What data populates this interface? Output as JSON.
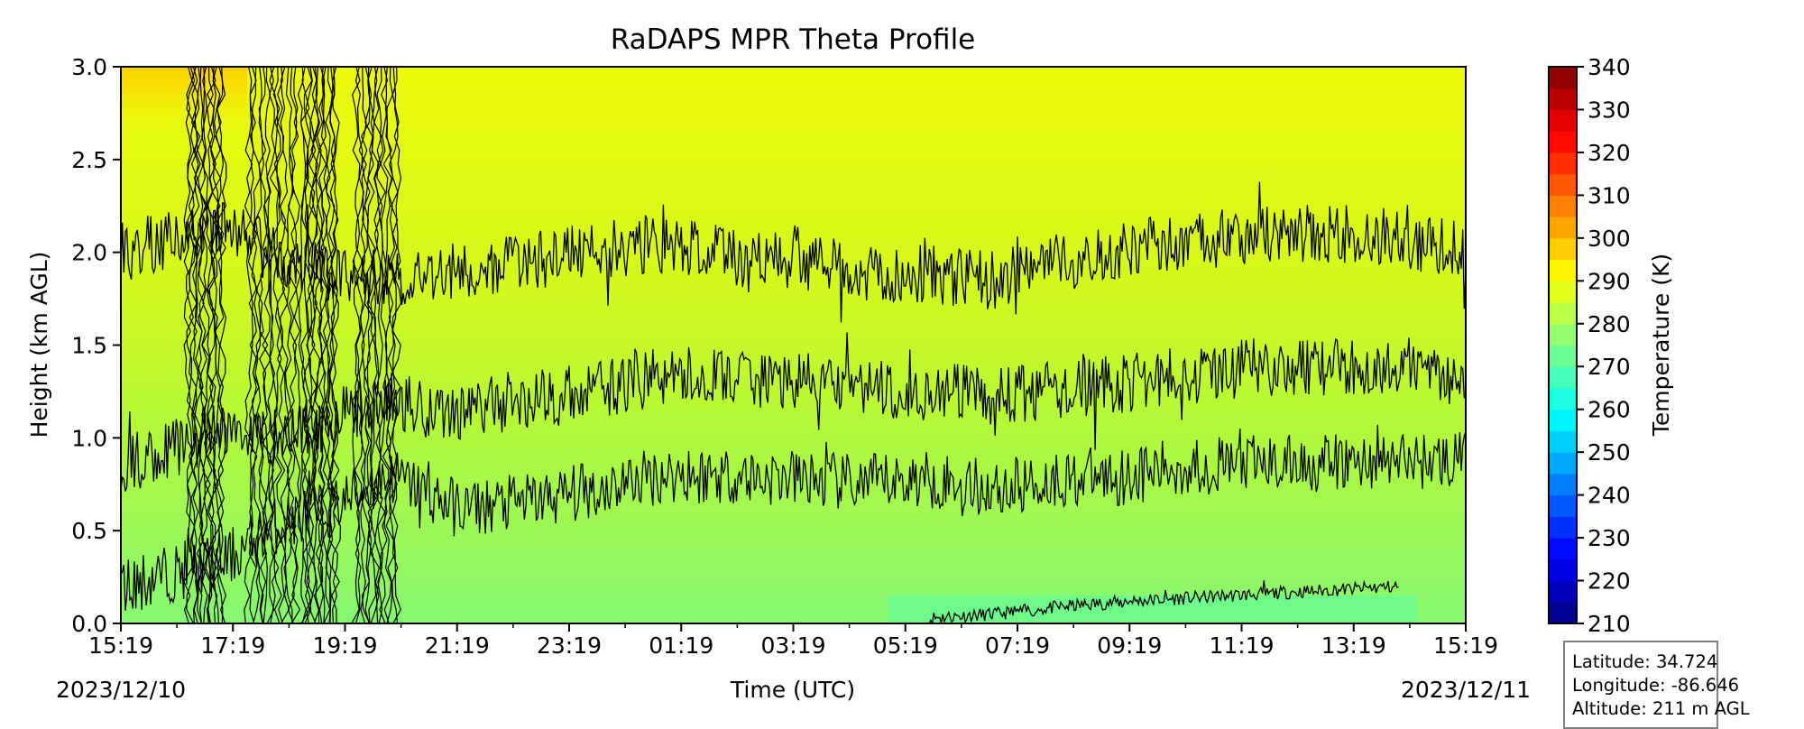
{
  "chart_data": {
    "type": "heatmap",
    "title": "RaDAPS MPR Theta Profile",
    "xlabel": "Time (UTC)",
    "ylabel": "Height (km AGL)",
    "x_tick_labels": [
      "15:19",
      "17:19",
      "19:19",
      "21:19",
      "23:19",
      "01:19",
      "03:19",
      "05:19",
      "07:19",
      "09:19",
      "11:19",
      "13:19",
      "15:19"
    ],
    "x_start_date": "2023/12/10",
    "x_end_date": "2023/12/11",
    "y_tick_labels": [
      "0.0",
      "0.5",
      "1.0",
      "1.5",
      "2.0",
      "2.5",
      "3.0"
    ],
    "ylim": [
      0,
      3.0
    ],
    "colorbar": {
      "label": "Temperature (K)",
      "range": [
        210,
        340
      ],
      "step": 5,
      "tick_labels": [
        "210",
        "220",
        "230",
        "240",
        "250",
        "260",
        "270",
        "280",
        "290",
        "300",
        "310",
        "320",
        "330",
        "340"
      ],
      "colormap": "jet"
    },
    "contour_levels_K": [
      270,
      280,
      290,
      300
    ],
    "contour_height_km": {
      "time_fraction": [
        0.0,
        0.08,
        0.12,
        0.15,
        0.2,
        0.25,
        0.3,
        0.35,
        0.4,
        0.45,
        0.5,
        0.55,
        0.6,
        0.65,
        0.7,
        0.75,
        0.8,
        0.85,
        0.9,
        0.95,
        1.0
      ],
      "level_270": [
        null,
        null,
        null,
        null,
        null,
        null,
        null,
        null,
        null,
        null,
        null,
        null,
        0.03,
        0.05,
        0.09,
        0.12,
        0.14,
        0.16,
        0.18,
        0.2,
        null
      ],
      "level_280": [
        0.2,
        0.35,
        0.55,
        0.6,
        0.8,
        0.62,
        0.65,
        0.72,
        0.8,
        0.8,
        0.78,
        0.75,
        0.78,
        0.72,
        0.78,
        0.8,
        0.85,
        0.86,
        0.86,
        0.88,
        0.88
      ],
      "level_290": [
        0.85,
        1.05,
        1.0,
        1.1,
        1.2,
        1.15,
        1.2,
        1.25,
        1.33,
        1.33,
        1.3,
        1.28,
        1.25,
        1.22,
        1.25,
        1.3,
        1.35,
        1.38,
        1.38,
        1.4,
        1.32
      ],
      "level_300": [
        2.0,
        2.15,
        1.95,
        1.9,
        1.85,
        1.9,
        1.95,
        2.0,
        2.05,
        1.98,
        1.95,
        1.9,
        1.88,
        1.85,
        1.95,
        2.02,
        2.05,
        2.1,
        2.1,
        2.08,
        2.0
      ]
    },
    "grid": false
  },
  "info": {
    "latitude": "Latitude: 34.724",
    "longitude": "Longitude: -86.646",
    "altitude": "Altitude: 211 m AGL"
  }
}
